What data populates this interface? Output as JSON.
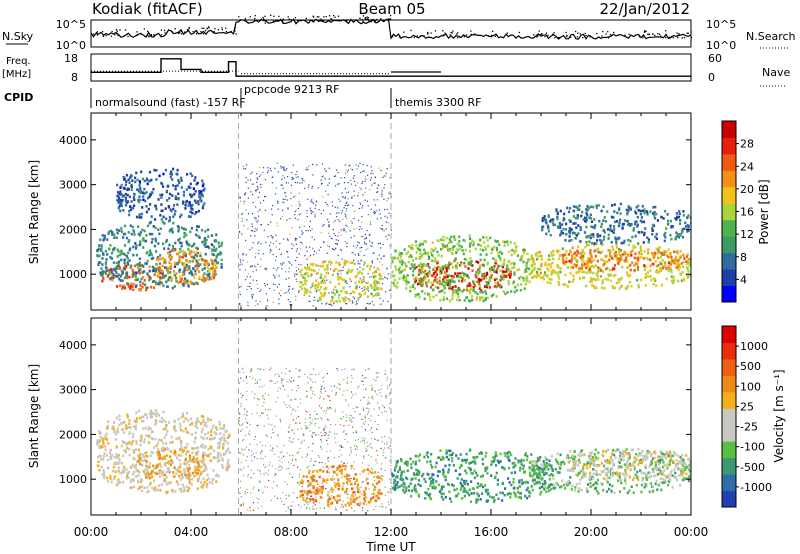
{
  "header": {
    "radar": "Kodiak (fitACF)",
    "beam": "Beam 05",
    "date": "22/Jan/2012"
  },
  "panels": {
    "nsky_label": "N.Sky",
    "nsky_ticks": [
      "10^5",
      "10^0"
    ],
    "nsearch_label": "N.Search",
    "nsearch_ticks": [
      "10^5",
      "10^0"
    ],
    "freq_label_1": "Freq.",
    "freq_label_2": "[MHz]",
    "freq_ticks": [
      "18",
      "8"
    ],
    "nave_label": "Nave",
    "nave_ticks": [
      "60",
      "0"
    ],
    "cpid_label": "CPID",
    "cpid_segments": [
      {
        "name": "normalsound (fast) -157 RF"
      },
      {
        "name": "pcpcode 9213 RF"
      },
      {
        "name": "themis 3300 RF"
      }
    ]
  },
  "x_axis": {
    "label": "Time UT",
    "ticks": [
      "00:00",
      "04:00",
      "08:00",
      "12:00",
      "16:00",
      "20:00",
      "00:00"
    ],
    "range_hours": [
      0,
      24
    ]
  },
  "chart_data": [
    {
      "type": "heatmap",
      "name": "power",
      "ylabel": "Slant Range [km]",
      "yticks": [
        "4000",
        "3000",
        "2000",
        "1000"
      ],
      "ylim": [
        200,
        4600
      ],
      "colorbar_label": "Power [dB]",
      "colorbar_ticks": [
        "28",
        "24",
        "20",
        "16",
        "12",
        "8",
        "4"
      ],
      "colorbar_range": [
        0,
        32
      ],
      "colormap": [
        "#0000ff",
        "#1f3fa8",
        "#2f6e9c",
        "#3d9a66",
        "#4fb24a",
        "#a8d63a",
        "#f2c21a",
        "#f29018",
        "#ef5a10",
        "#e8200c",
        "#c80000"
      ],
      "cpid_change_hours": [
        5.9,
        12.0
      ],
      "scatter_blobs": [
        {
          "t0": 0.4,
          "t1": 2.8,
          "r0": 650,
          "r1": 1250,
          "level": 0.82
        },
        {
          "t0": 0.2,
          "t1": 5.2,
          "r0": 700,
          "r1": 2200,
          "level": 0.25
        },
        {
          "t0": 2.6,
          "t1": 5.0,
          "r0": 800,
          "r1": 1600,
          "level": 0.68
        },
        {
          "t0": 1.0,
          "t1": 4.5,
          "r0": 2200,
          "r1": 3400,
          "level": 0.15
        },
        {
          "t0": 8.3,
          "t1": 11.6,
          "r0": 400,
          "r1": 1350,
          "level": 0.55
        },
        {
          "t0": 12.8,
          "t1": 16.8,
          "r0": 650,
          "r1": 1350,
          "level": 0.92
        },
        {
          "t0": 12.0,
          "t1": 17.5,
          "r0": 400,
          "r1": 1900,
          "level": 0.45
        },
        {
          "t0": 17.5,
          "t1": 24.0,
          "r0": 700,
          "r1": 1700,
          "level": 0.55
        },
        {
          "t0": 18.8,
          "t1": 23.8,
          "r0": 1100,
          "r1": 1600,
          "level": 0.75
        },
        {
          "t0": 18.0,
          "t1": 24.0,
          "r0": 1700,
          "r1": 2600,
          "level": 0.2
        }
      ],
      "noise_region_hours": [
        5.9,
        12.0
      ],
      "noise_range_km": [
        300,
        3500
      ]
    },
    {
      "type": "heatmap",
      "name": "velocity",
      "ylabel": "Slant Range [km]",
      "yticks": [
        "4000",
        "3000",
        "2000",
        "1000"
      ],
      "ylim": [
        200,
        4600
      ],
      "colorbar_label": "Velocity [m s⁻¹]",
      "colorbar_ticks": [
        "1000",
        "500",
        "100",
        "25",
        "-25",
        "-100",
        "-500",
        "-1000"
      ],
      "colorbar_range": [
        -1200,
        1200
      ],
      "colormap": [
        "#2040b0",
        "#2f6ea8",
        "#3b9a70",
        "#58c040",
        "#c8c8c0",
        "#c8c8c0",
        "#f2b01c",
        "#f08a16",
        "#ee6010",
        "#e82e0c",
        "#e00000"
      ],
      "cpid_change_hours": [
        5.9,
        12.0
      ],
      "scatter_blobs": [
        {
          "t0": 0.2,
          "t1": 5.5,
          "r0": 700,
          "r1": 2600,
          "level": 0.5
        },
        {
          "t0": 1.8,
          "t1": 4.5,
          "r0": 1000,
          "r1": 1700,
          "level": 0.62
        },
        {
          "t0": 8.3,
          "t1": 11.6,
          "r0": 400,
          "r1": 1350,
          "level": 0.68
        },
        {
          "t0": 12.0,
          "t1": 18.5,
          "r0": 500,
          "r1": 1700,
          "level": 0.22
        },
        {
          "t0": 17.5,
          "t1": 24.0,
          "r0": 700,
          "r1": 1700,
          "level": 0.3
        },
        {
          "t0": 19.0,
          "t1": 24.0,
          "r0": 1000,
          "r1": 1700,
          "level": 0.5
        }
      ],
      "noise_region_hours": [
        5.9,
        12.0
      ],
      "noise_range_km": [
        300,
        3500
      ]
    }
  ]
}
